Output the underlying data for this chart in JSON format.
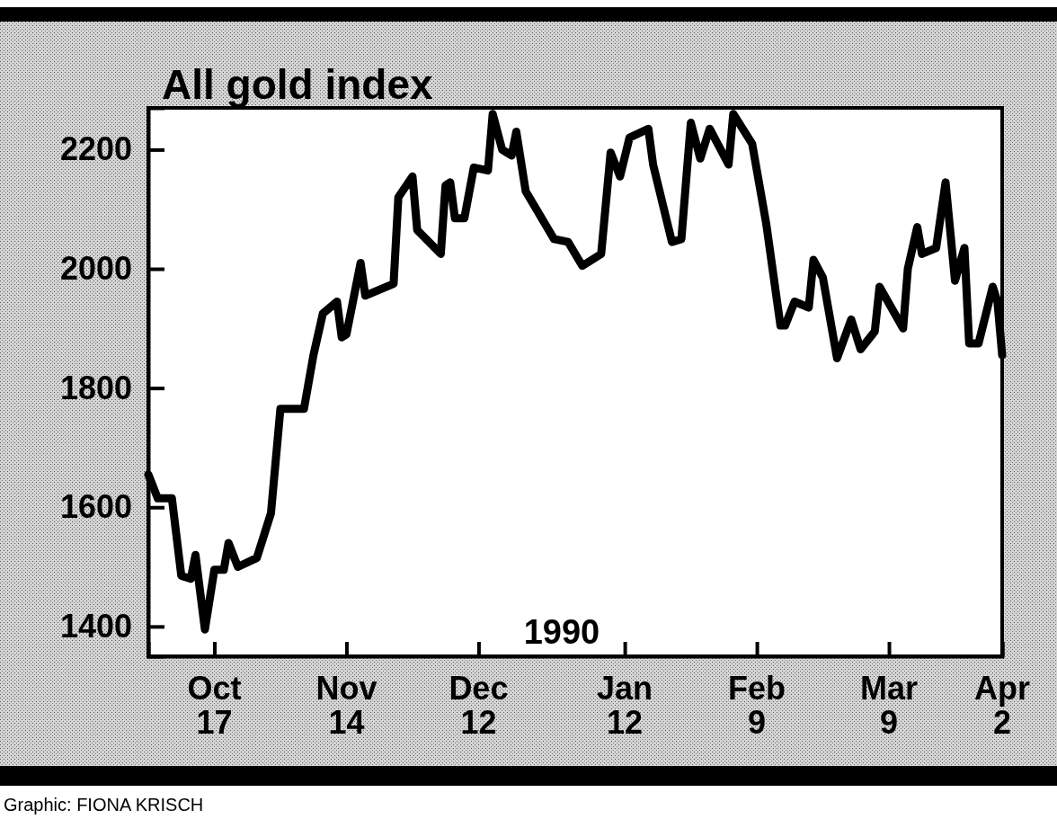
{
  "chart_data": {
    "type": "line",
    "title": "All gold index",
    "x": [
      "1989-10-03",
      "1989-10-05",
      "1989-10-08",
      "1989-10-10",
      "1989-10-12",
      "1989-10-13",
      "1989-10-15",
      "1989-10-17",
      "1989-10-19",
      "1989-10-20",
      "1989-10-22",
      "1989-10-26",
      "1989-10-29",
      "1989-10-31",
      "1989-11-05",
      "1989-11-07",
      "1989-11-09",
      "1989-11-12",
      "1989-11-13",
      "1989-11-14",
      "1989-11-17",
      "1989-11-18",
      "1989-11-24",
      "1989-11-25",
      "1989-11-28",
      "1989-11-29",
      "1989-12-04",
      "1989-12-05",
      "1989-12-06",
      "1989-12-07",
      "1989-12-09",
      "1989-12-11",
      "1989-12-14",
      "1989-12-15",
      "1989-12-17",
      "1989-12-19",
      "1989-12-20",
      "1989-12-22",
      "1989-12-28",
      "1989-12-31",
      "1990-01-03",
      "1990-01-07",
      "1990-01-09",
      "1990-01-11",
      "1990-01-13",
      "1990-01-17",
      "1990-01-18",
      "1990-01-22",
      "1990-01-24",
      "1990-01-26",
      "1990-01-28",
      "1990-01-30",
      "1990-02-03",
      "1990-02-04",
      "1990-02-08",
      "1990-02-11",
      "1990-02-14",
      "1990-02-15",
      "1990-02-17",
      "1990-02-20",
      "1990-02-21",
      "1990-02-23",
      "1990-02-26",
      "1990-03-01",
      "1990-03-03",
      "1990-03-06",
      "1990-03-07",
      "1990-03-12",
      "1990-03-13",
      "1990-03-15",
      "1990-03-16",
      "1990-03-19",
      "1990-03-21",
      "1990-03-23",
      "1990-03-25",
      "1990-03-26",
      "1990-03-28",
      "1990-03-31",
      "1990-04-01",
      "1990-04-02"
    ],
    "series": [
      {
        "color": "#000000",
        "values": [
          1655,
          1615,
          1615,
          1485,
          1480,
          1520,
          1395,
          1495,
          1495,
          1540,
          1500,
          1515,
          1590,
          1765,
          1765,
          1855,
          1925,
          1945,
          1885,
          1890,
          2010,
          1955,
          1975,
          2120,
          2155,
          2065,
          2025,
          2140,
          2145,
          2085,
          2085,
          2170,
          2165,
          2260,
          2200,
          2190,
          2230,
          2130,
          2050,
          2045,
          2005,
          2025,
          2195,
          2155,
          2220,
          2235,
          2175,
          2045,
          2050,
          2245,
          2185,
          2235,
          2175,
          2260,
          2210,
          2075,
          1905,
          1905,
          1945,
          1935,
          2015,
          1985,
          1850,
          1915,
          1865,
          1895,
          1970,
          1900,
          2000,
          2070,
          2025,
          2035,
          2145,
          1980,
          2035,
          1875,
          1875,
          1970,
          1945,
          1855
        ]
      }
    ],
    "xlim": [
      "1989-10-03",
      "1990-04-02"
    ],
    "xticks": [
      {
        "value": "1989-10-17",
        "label": "Oct 17"
      },
      {
        "value": "1989-11-14",
        "label": "Nov 14"
      },
      {
        "value": "1989-12-12",
        "label": "Dec 12"
      },
      {
        "value": "1990-01-12",
        "label": "Jan 12"
      },
      {
        "value": "1990-02-09",
        "label": "Feb 9"
      },
      {
        "value": "1990-03-09",
        "label": "Mar 9"
      },
      {
        "value": "1990-04-02",
        "label": "Apr 2"
      }
    ],
    "ylim": [
      1350,
      2270
    ],
    "yticks": [
      1400,
      1600,
      1800,
      2000,
      2200
    ],
    "annotations": [
      "1990",
      "Graphic: FIONA KRISCH"
    ],
    "marker": "none",
    "line_style": "solid"
  }
}
